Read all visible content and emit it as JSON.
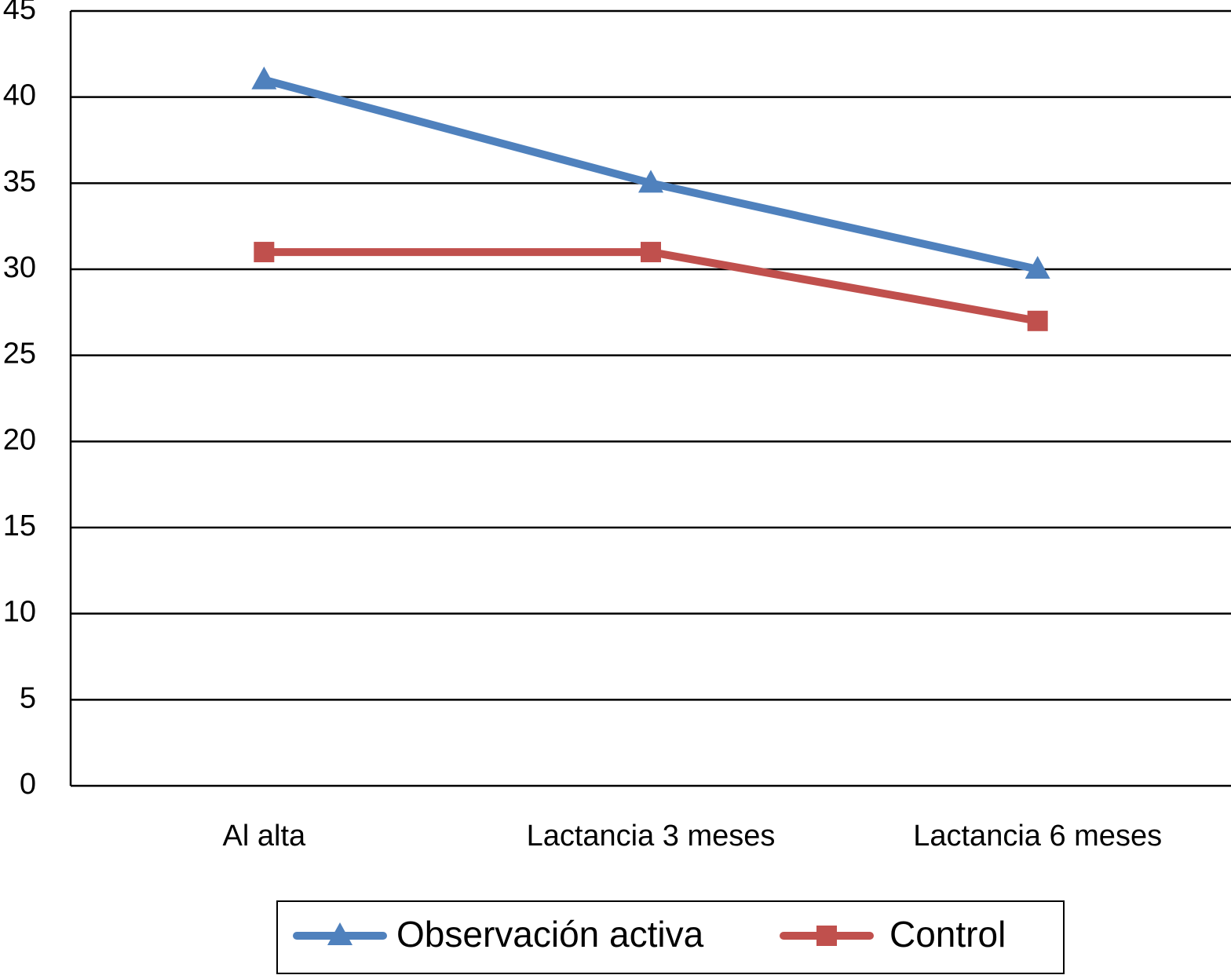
{
  "chart_data": {
    "type": "line",
    "categories": [
      "Al alta",
      "Lactancia 3 meses",
      "Lactancia 6 meses"
    ],
    "series": [
      {
        "name": "Observación activa",
        "color": "#4f81bd",
        "marker": "triangle",
        "values": [
          41,
          35,
          30
        ]
      },
      {
        "name": "Control",
        "color": "#c0504d",
        "marker": "square",
        "values": [
          31,
          31,
          27
        ]
      }
    ],
    "ylim": [
      0,
      45
    ],
    "yticks": [
      0,
      5,
      10,
      15,
      20,
      25,
      30,
      35,
      40,
      45
    ],
    "grid": true,
    "legend": "bottom"
  }
}
